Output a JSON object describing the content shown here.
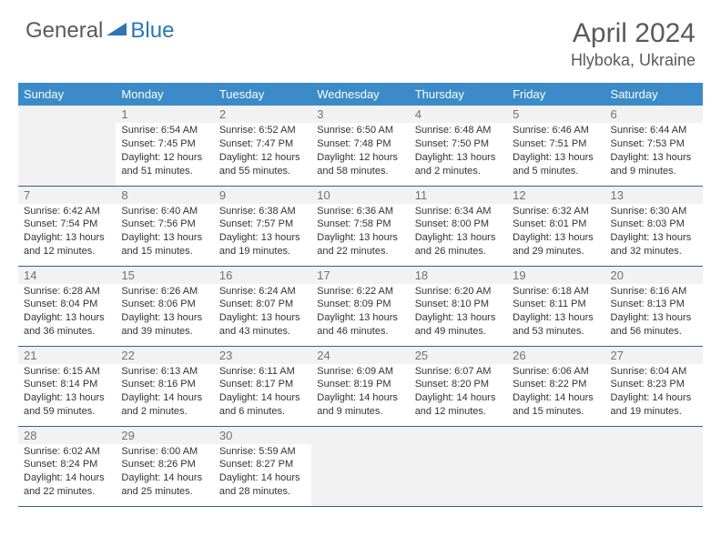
{
  "logo": {
    "general": "General",
    "blue": "Blue"
  },
  "title": {
    "month": "April 2024",
    "location": "Hlyboka, Ukraine"
  },
  "colors": {
    "header_bg": "#3b8bc8",
    "header_text": "#ffffff",
    "daynum_bg": "#f2f2f2",
    "daynum_text": "#717171",
    "border": "#365f91",
    "logo_gray": "#5a5a5a",
    "logo_blue": "#2e75b6"
  },
  "weekdays": [
    "Sunday",
    "Monday",
    "Tuesday",
    "Wednesday",
    "Thursday",
    "Friday",
    "Saturday"
  ],
  "weeks": [
    [
      null,
      {
        "n": 1,
        "sr": "6:54 AM",
        "ss": "7:45 PM",
        "dl": "12 hours and 51 minutes."
      },
      {
        "n": 2,
        "sr": "6:52 AM",
        "ss": "7:47 PM",
        "dl": "12 hours and 55 minutes."
      },
      {
        "n": 3,
        "sr": "6:50 AM",
        "ss": "7:48 PM",
        "dl": "12 hours and 58 minutes."
      },
      {
        "n": 4,
        "sr": "6:48 AM",
        "ss": "7:50 PM",
        "dl": "13 hours and 2 minutes."
      },
      {
        "n": 5,
        "sr": "6:46 AM",
        "ss": "7:51 PM",
        "dl": "13 hours and 5 minutes."
      },
      {
        "n": 6,
        "sr": "6:44 AM",
        "ss": "7:53 PM",
        "dl": "13 hours and 9 minutes."
      }
    ],
    [
      {
        "n": 7,
        "sr": "6:42 AM",
        "ss": "7:54 PM",
        "dl": "13 hours and 12 minutes."
      },
      {
        "n": 8,
        "sr": "6:40 AM",
        "ss": "7:56 PM",
        "dl": "13 hours and 15 minutes."
      },
      {
        "n": 9,
        "sr": "6:38 AM",
        "ss": "7:57 PM",
        "dl": "13 hours and 19 minutes."
      },
      {
        "n": 10,
        "sr": "6:36 AM",
        "ss": "7:58 PM",
        "dl": "13 hours and 22 minutes."
      },
      {
        "n": 11,
        "sr": "6:34 AM",
        "ss": "8:00 PM",
        "dl": "13 hours and 26 minutes."
      },
      {
        "n": 12,
        "sr": "6:32 AM",
        "ss": "8:01 PM",
        "dl": "13 hours and 29 minutes."
      },
      {
        "n": 13,
        "sr": "6:30 AM",
        "ss": "8:03 PM",
        "dl": "13 hours and 32 minutes."
      }
    ],
    [
      {
        "n": 14,
        "sr": "6:28 AM",
        "ss": "8:04 PM",
        "dl": "13 hours and 36 minutes."
      },
      {
        "n": 15,
        "sr": "6:26 AM",
        "ss": "8:06 PM",
        "dl": "13 hours and 39 minutes."
      },
      {
        "n": 16,
        "sr": "6:24 AM",
        "ss": "8:07 PM",
        "dl": "13 hours and 43 minutes."
      },
      {
        "n": 17,
        "sr": "6:22 AM",
        "ss": "8:09 PM",
        "dl": "13 hours and 46 minutes."
      },
      {
        "n": 18,
        "sr": "6:20 AM",
        "ss": "8:10 PM",
        "dl": "13 hours and 49 minutes."
      },
      {
        "n": 19,
        "sr": "6:18 AM",
        "ss": "8:11 PM",
        "dl": "13 hours and 53 minutes."
      },
      {
        "n": 20,
        "sr": "6:16 AM",
        "ss": "8:13 PM",
        "dl": "13 hours and 56 minutes."
      }
    ],
    [
      {
        "n": 21,
        "sr": "6:15 AM",
        "ss": "8:14 PM",
        "dl": "13 hours and 59 minutes."
      },
      {
        "n": 22,
        "sr": "6:13 AM",
        "ss": "8:16 PM",
        "dl": "14 hours and 2 minutes."
      },
      {
        "n": 23,
        "sr": "6:11 AM",
        "ss": "8:17 PM",
        "dl": "14 hours and 6 minutes."
      },
      {
        "n": 24,
        "sr": "6:09 AM",
        "ss": "8:19 PM",
        "dl": "14 hours and 9 minutes."
      },
      {
        "n": 25,
        "sr": "6:07 AM",
        "ss": "8:20 PM",
        "dl": "14 hours and 12 minutes."
      },
      {
        "n": 26,
        "sr": "6:06 AM",
        "ss": "8:22 PM",
        "dl": "14 hours and 15 minutes."
      },
      {
        "n": 27,
        "sr": "6:04 AM",
        "ss": "8:23 PM",
        "dl": "14 hours and 19 minutes."
      }
    ],
    [
      {
        "n": 28,
        "sr": "6:02 AM",
        "ss": "8:24 PM",
        "dl": "14 hours and 22 minutes."
      },
      {
        "n": 29,
        "sr": "6:00 AM",
        "ss": "8:26 PM",
        "dl": "14 hours and 25 minutes."
      },
      {
        "n": 30,
        "sr": "5:59 AM",
        "ss": "8:27 PM",
        "dl": "14 hours and 28 minutes."
      },
      null,
      null,
      null,
      null
    ]
  ],
  "labels": {
    "sunrise": "Sunrise:",
    "sunset": "Sunset:",
    "daylight": "Daylight:"
  }
}
